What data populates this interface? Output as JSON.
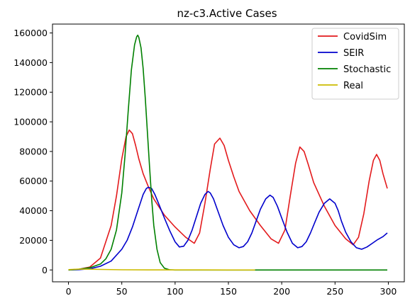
{
  "chart_data": {
    "type": "line",
    "title": "nz-c3.Active Cases",
    "xlabel": "",
    "ylabel": "",
    "xlim": [
      -15,
      315
    ],
    "ylim": [
      -8000,
      166000
    ],
    "xticks": [
      0,
      50,
      100,
      150,
      200,
      250,
      300
    ],
    "yticks": [
      0,
      20000,
      40000,
      60000,
      80000,
      100000,
      120000,
      140000,
      160000
    ],
    "grid": false,
    "legend": "top-right",
    "series": [
      {
        "name": "CovidSim",
        "color": "#e31a1c",
        "x": [
          0,
          10,
          20,
          30,
          40,
          45,
          50,
          54,
          57,
          60,
          63,
          66,
          70,
          75,
          80,
          90,
          100,
          110,
          118,
          123,
          128,
          133,
          137,
          142,
          146,
          150,
          155,
          160,
          170,
          180,
          190,
          197,
          203,
          208,
          213,
          217,
          221,
          225,
          230,
          240,
          250,
          260,
          267,
          272,
          277,
          282,
          286,
          289,
          292,
          295,
          299
        ],
        "y": [
          0,
          500,
          2000,
          8000,
          30000,
          50000,
          75000,
          90000,
          94500,
          92000,
          84000,
          75000,
          65000,
          56000,
          48000,
          37000,
          29000,
          22000,
          18000,
          25000,
          45000,
          68000,
          85000,
          89000,
          84000,
          74000,
          63000,
          53000,
          40000,
          30000,
          21000,
          18000,
          27000,
          50000,
          72000,
          83000,
          80000,
          71000,
          59000,
          43000,
          30000,
          21000,
          17000,
          22000,
          38000,
          60000,
          74000,
          78000,
          74000,
          65000,
          55000
        ]
      },
      {
        "name": "SEIR",
        "color": "#0000cc",
        "x": [
          0,
          10,
          20,
          30,
          40,
          50,
          55,
          60,
          65,
          70,
          73,
          75,
          78,
          81,
          85,
          90,
          95,
          100,
          104,
          108,
          112,
          116,
          120,
          124,
          128,
          131,
          133,
          136,
          140,
          145,
          150,
          155,
          160,
          164,
          168,
          172,
          176,
          180,
          185,
          189,
          192,
          196,
          200,
          205,
          210,
          215,
          219,
          223,
          227,
          231,
          235,
          240,
          245,
          250,
          253,
          256,
          260,
          265,
          270,
          275,
          280,
          285,
          290,
          295,
          299
        ],
        "y": [
          0,
          200,
          800,
          2500,
          6000,
          14000,
          20000,
          29000,
          40000,
          51000,
          55000,
          55800,
          55000,
          51000,
          44000,
          35000,
          26500,
          19000,
          15500,
          16000,
          20000,
          27000,
          36000,
          45000,
          51000,
          53000,
          52000,
          48000,
          40000,
          30000,
          22000,
          17000,
          15000,
          15800,
          19000,
          25000,
          33000,
          41000,
          48000,
          50500,
          49000,
          43000,
          35000,
          25500,
          18000,
          15000,
          15800,
          19000,
          25000,
          32000,
          39000,
          45000,
          48000,
          45000,
          40000,
          33000,
          25500,
          19000,
          15000,
          14000,
          15500,
          18000,
          20500,
          22500,
          25000
        ]
      },
      {
        "name": "Stochastic",
        "color": "#008000",
        "x": [
          0,
          10,
          20,
          30,
          35,
          40,
          45,
          50,
          53,
          56,
          59,
          62,
          64,
          65,
          66,
          68,
          70,
          72,
          74,
          76,
          78,
          80,
          83,
          86,
          90,
          95,
          100,
          150,
          200,
          250,
          299
        ],
        "y": [
          0,
          500,
          1500,
          4000,
          7500,
          14000,
          27000,
          52000,
          77000,
          107000,
          135000,
          152000,
          157500,
          158500,
          157000,
          150000,
          136000,
          116000,
          93000,
          70000,
          48000,
          30000,
          14000,
          5000,
          1200,
          100,
          0,
          0,
          0,
          0,
          0
        ]
      },
      {
        "name": "Real",
        "color": "#ccbb00",
        "x": [
          0,
          10,
          20,
          30,
          50,
          75,
          100,
          125,
          150,
          175
        ],
        "y": [
          200,
          600,
          500,
          350,
          150,
          50,
          20,
          10,
          5,
          0
        ]
      }
    ]
  }
}
